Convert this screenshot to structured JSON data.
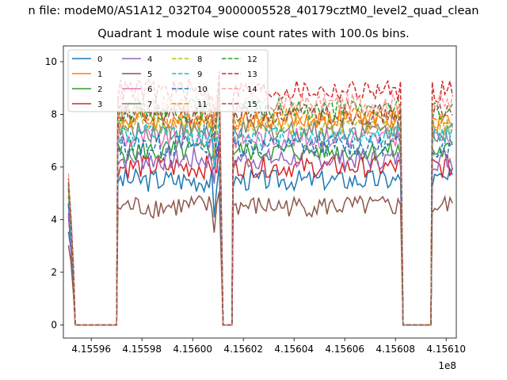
{
  "suptitle": "n file: modeM0/AS1A12_032T04_9000005528_40179cztM0_level2_quad_clean",
  "chart_data": {
    "type": "line",
    "title": "Quadrant 1 module wise count rates with 100.0s bins.",
    "xlabel": "",
    "ylabel": "",
    "x_offset_label": "1e8",
    "xlim": [
      4.155949,
      4.156104
    ],
    "ylim": [
      -0.5,
      10.6
    ],
    "x_tick_labels": [
      "4.15596",
      "4.15598",
      "4.15600",
      "4.15602",
      "4.15604",
      "4.15606",
      "4.15608",
      "4.15610"
    ],
    "x_tick_values": [
      4.15596,
      4.15598,
      4.156,
      4.15602,
      4.15604,
      4.15606,
      4.15608,
      4.1561
    ],
    "y_ticks": [
      0,
      2,
      4,
      6,
      8,
      10
    ],
    "grid": false,
    "legend": {
      "placement": "upper-left",
      "columns": 4
    },
    "x_ranges_in_1e8": [
      [
        4.155951,
        4.155953
      ],
      [
        4.155954,
        4.155958
      ],
      [
        4.1559705,
        4.1560115
      ],
      [
        4.156012,
        4.1560155
      ],
      [
        4.156016,
        4.156023
      ],
      [
        4.1560235,
        4.156043
      ],
      [
        4.156083,
        4.156094
      ],
      [
        4.1560945,
        4.156103
      ]
    ],
    "notes_segments": [
      "ramp",
      "zero",
      "active",
      "zero",
      "active",
      "zero",
      "active"
    ],
    "series": [
      {
        "name": "0",
        "color": "#1f77b4",
        "dash": "solid",
        "level": 5.5
      },
      {
        "name": "1",
        "color": "#ff7f0e",
        "dash": "solid",
        "level": 7.8
      },
      {
        "name": "2",
        "color": "#2ca02c",
        "dash": "solid",
        "level": 6.6
      },
      {
        "name": "3",
        "color": "#d62728",
        "dash": "solid",
        "level": 6.0
      },
      {
        "name": "4",
        "color": "#9467bd",
        "dash": "solid",
        "level": 6.3
      },
      {
        "name": "5",
        "color": "#8c564b",
        "dash": "solid",
        "level": 4.5
      },
      {
        "name": "6",
        "color": "#e377c2",
        "dash": "solid",
        "level": 7.1
      },
      {
        "name": "7",
        "color": "#7f7f7f",
        "dash": "solid",
        "level": 7.4
      },
      {
        "name": "8",
        "color": "#bcbd22",
        "dash": "dashed",
        "level": 7.6
      },
      {
        "name": "9",
        "color": "#17becf",
        "dash": "dashed",
        "level": 7.2
      },
      {
        "name": "10",
        "color": "#1f77b4",
        "dash": "dashed",
        "level": 6.8
      },
      {
        "name": "11",
        "color": "#ff7f0e",
        "dash": "dashed",
        "level": 7.9
      },
      {
        "name": "12",
        "color": "#2ca02c",
        "dash": "dashed",
        "level": 8.2
      },
      {
        "name": "13",
        "color": "#d62728",
        "dash": "dashed",
        "level": 8.9
      },
      {
        "name": "14",
        "color": "#ff9896",
        "dash": "dashed",
        "level": 8.4
      },
      {
        "name": "15",
        "color": "#8c564b",
        "dash": "dashed",
        "level": 8.0
      }
    ]
  }
}
